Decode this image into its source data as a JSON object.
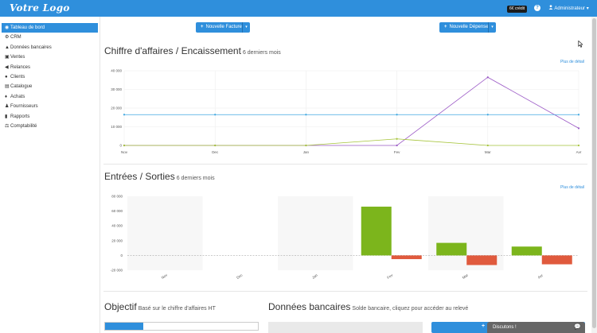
{
  "header": {
    "logo": "Votre Logo",
    "credit_badge": "6€ crédit",
    "help": "?",
    "user": "Administrateur"
  },
  "sidebar": {
    "items": [
      {
        "label": "Tableau de bord",
        "icon": "dashboard-icon",
        "glyph": "◉",
        "active": true
      },
      {
        "label": "CRM",
        "icon": "crm-icon",
        "glyph": "⚙",
        "active": false
      },
      {
        "label": "Données bancaires",
        "icon": "bank-icon",
        "glyph": "▲",
        "active": false
      },
      {
        "label": "Ventes",
        "icon": "sales-icon",
        "glyph": "▣",
        "active": false
      },
      {
        "label": "Relances",
        "icon": "megaphone-icon",
        "glyph": "◀",
        "active": false
      },
      {
        "label": "Clients",
        "icon": "clients-icon",
        "glyph": "●",
        "active": false
      },
      {
        "label": "Catalogue",
        "icon": "catalog-icon",
        "glyph": "▤",
        "active": false
      },
      {
        "label": "Achats",
        "icon": "purchases-icon",
        "glyph": "♦",
        "active": false
      },
      {
        "label": "Fournisseurs",
        "icon": "suppliers-icon",
        "glyph": "♟",
        "active": false
      },
      {
        "label": "Rapports",
        "icon": "reports-icon",
        "glyph": "▮",
        "active": false
      },
      {
        "label": "Comptabilité",
        "icon": "accounting-icon",
        "glyph": "⚖",
        "active": false
      }
    ]
  },
  "actions": {
    "new_invoice": "Nouvelle Facture",
    "new_expense": "Nouvelle Dépense"
  },
  "revenue_section": {
    "title": "Chiffre d'affaires / Encaissement",
    "subtitle": "6 derniers mois",
    "detail_link": "Plus de détail"
  },
  "inout_section": {
    "title": "Entrées / Sorties",
    "subtitle": "6 derniers mois",
    "detail_link": "Plus de détail"
  },
  "objective": {
    "title": "Objectif",
    "subtitle": "Basé sur le chiffre d'affaires HT",
    "progress": 0.25
  },
  "bank": {
    "title": "Données bancaires",
    "subtitle": "Solde bancaire, cliquez pour accéder au relevé"
  },
  "chat": {
    "label": "Discutons !"
  },
  "colors": {
    "accent": "#2f8fdc",
    "series_purple": "#9b59c6",
    "series_blue": "#3fa7e0",
    "series_green": "#a6c43a",
    "bar_green": "#7cb51c",
    "bar_red": "#e05a3d"
  },
  "chart_data": [
    {
      "type": "line",
      "categories": [
        "Nov",
        "Dec",
        "Jan",
        "Fev",
        "Mar",
        "Avr"
      ],
      "ylim": [
        0,
        40000
      ],
      "yticks": [
        "0",
        "10 000",
        "20 000",
        "30 000",
        "40 000"
      ],
      "grid": true,
      "series": [
        {
          "color": "#9b59c6",
          "values": [
            0,
            0,
            0,
            0,
            36500,
            9200
          ]
        },
        {
          "color": "#3fa7e0",
          "values": [
            16500,
            16500,
            16500,
            16500,
            16500,
            16500
          ]
        },
        {
          "color": "#a6c43a",
          "values": [
            0,
            0,
            0,
            3500,
            0,
            0
          ]
        }
      ]
    },
    {
      "type": "bar",
      "categories": [
        "Nov",
        "Dec",
        "Jan",
        "Fev",
        "Mar",
        "Avr"
      ],
      "ylim": [
        -20000,
        80000
      ],
      "yticks": [
        "-20 000",
        "0",
        "20 000",
        "40 000",
        "60 000",
        "80 000"
      ],
      "series": [
        {
          "color": "#7cb51c",
          "values": [
            0,
            0,
            0,
            66000,
            17000,
            12000
          ]
        },
        {
          "color": "#e05a3d",
          "values": [
            0,
            0,
            0,
            -5000,
            -13000,
            -12000
          ]
        }
      ]
    }
  ]
}
